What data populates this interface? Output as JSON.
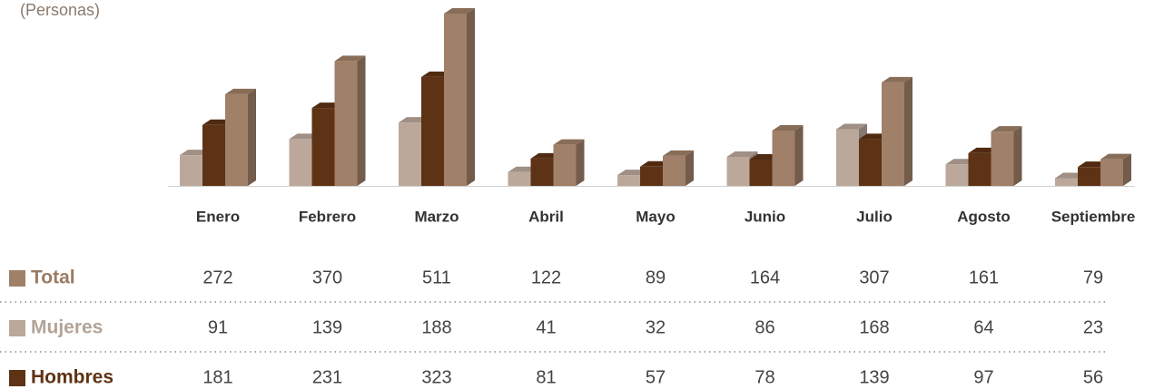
{
  "chart_data": {
    "type": "bar",
    "subtitle": "(Personas)",
    "categories": [
      "Enero",
      "Febrero",
      "Marzo",
      "Abril",
      "Mayo",
      "Junio",
      "Julio",
      "Agosto",
      "Septiembre"
    ],
    "series": [
      {
        "name": "Mujeres",
        "color": "#bba89b",
        "values": [
          91,
          139,
          188,
          41,
          32,
          86,
          168,
          64,
          23
        ]
      },
      {
        "name": "Hombres",
        "color": "#5e3214",
        "values": [
          181,
          231,
          323,
          81,
          57,
          78,
          139,
          97,
          56
        ]
      },
      {
        "name": "Total",
        "color": "#a08068",
        "values": [
          272,
          370,
          511,
          122,
          89,
          164,
          307,
          161,
          79
        ]
      }
    ]
  }
}
